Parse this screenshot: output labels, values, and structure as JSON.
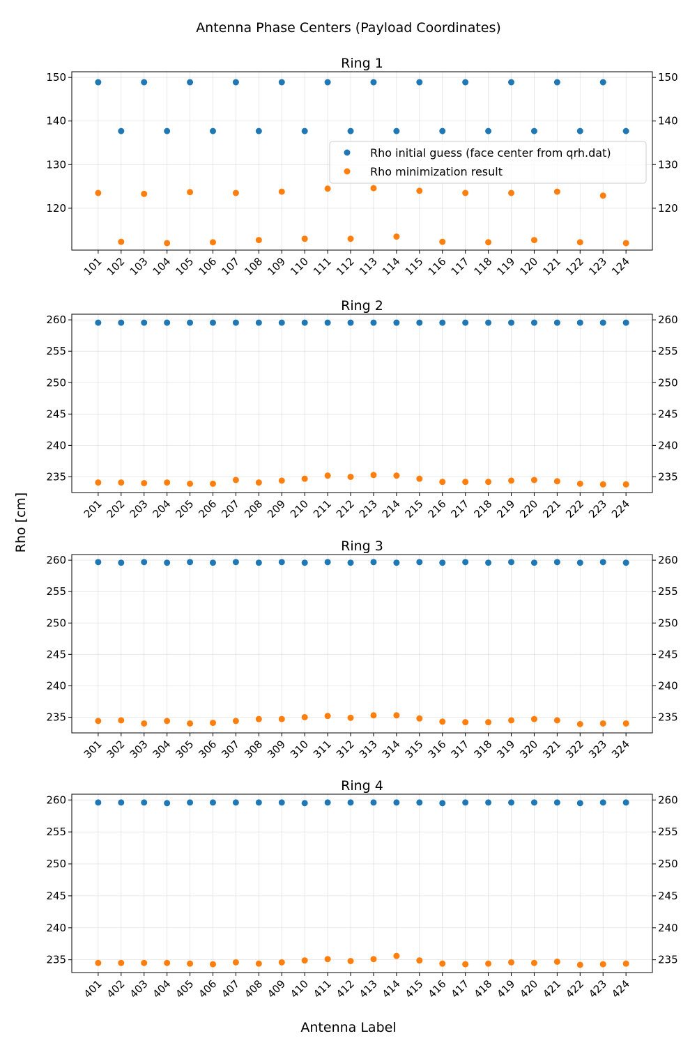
{
  "chart_data": {
    "type": "scatter",
    "title": "Antenna Phase Centers (Payload Coordinates)",
    "xlabel": "Antenna Label",
    "ylabel": "Rho [cm]",
    "legend": {
      "placement": "center-right of first subplot",
      "entries": [
        "Rho initial guess (face center from qrh.dat)",
        "Rho minimization result"
      ]
    },
    "colors": {
      "initial": "#1f77b4",
      "result": "#ff7f0e"
    },
    "grid": true,
    "subplots": [
      {
        "title": "Ring 1",
        "categories": [
          "101",
          "102",
          "103",
          "104",
          "105",
          "106",
          "107",
          "108",
          "109",
          "110",
          "111",
          "112",
          "113",
          "114",
          "115",
          "116",
          "117",
          "118",
          "119",
          "120",
          "121",
          "122",
          "123",
          "124"
        ],
        "ylim": [
          110.4,
          151.3
        ],
        "yticks": [
          120,
          130,
          140,
          150
        ],
        "series": [
          {
            "name": "Rho initial guess (face center from qrh.dat)",
            "values": [
              148.9,
              137.7,
              148.9,
              137.7,
              148.9,
              137.7,
              148.9,
              137.7,
              148.9,
              137.7,
              148.9,
              137.7,
              148.9,
              137.7,
              148.9,
              137.7,
              148.9,
              137.7,
              148.9,
              137.7,
              148.9,
              137.7,
              148.9,
              137.7
            ]
          },
          {
            "name": "Rho minimization result",
            "values": [
              123.5,
              112.3,
              123.3,
              112.0,
              123.7,
              112.2,
              123.5,
              112.7,
              123.8,
              113.0,
              124.5,
              113.0,
              124.6,
              113.5,
              124.0,
              112.3,
              123.5,
              112.2,
              123.5,
              112.7,
              123.8,
              112.2,
              122.9,
              112.0
            ]
          }
        ]
      },
      {
        "title": "Ring 2",
        "categories": [
          "201",
          "202",
          "203",
          "204",
          "205",
          "206",
          "207",
          "208",
          "209",
          "210",
          "211",
          "212",
          "213",
          "214",
          "215",
          "216",
          "217",
          "218",
          "219",
          "220",
          "221",
          "222",
          "223",
          "224"
        ],
        "ylim": [
          232.5,
          260.9
        ],
        "yticks": [
          235,
          240,
          245,
          250,
          255,
          260
        ],
        "series": [
          {
            "name": "Rho initial guess (face center from qrh.dat)",
            "values": [
              259.55,
              259.55,
              259.55,
              259.55,
              259.55,
              259.55,
              259.55,
              259.55,
              259.55,
              259.55,
              259.55,
              259.55,
              259.55,
              259.55,
              259.55,
              259.55,
              259.55,
              259.55,
              259.55,
              259.55,
              259.55,
              259.55,
              259.55,
              259.55
            ]
          },
          {
            "name": "Rho minimization result",
            "values": [
              234.1,
              234.1,
              234.0,
              234.1,
              233.9,
              233.9,
              234.5,
              234.1,
              234.4,
              234.7,
              235.2,
              235.0,
              235.3,
              235.2,
              234.7,
              234.2,
              234.2,
              234.2,
              234.4,
              234.5,
              234.3,
              233.9,
              233.8,
              233.8
            ]
          }
        ]
      },
      {
        "title": "Ring 3",
        "categories": [
          "301",
          "302",
          "303",
          "304",
          "305",
          "306",
          "307",
          "308",
          "309",
          "310",
          "311",
          "312",
          "313",
          "314",
          "315",
          "316",
          "317",
          "318",
          "319",
          "320",
          "321",
          "322",
          "323",
          "324"
        ],
        "ylim": [
          232.5,
          260.9
        ],
        "yticks": [
          235,
          240,
          245,
          250,
          255,
          260
        ],
        "series": [
          {
            "name": "Rho initial guess (face center from qrh.dat)",
            "values": [
              259.7,
              259.6,
              259.7,
              259.6,
              259.7,
              259.6,
              259.7,
              259.6,
              259.7,
              259.6,
              259.7,
              259.6,
              259.7,
              259.6,
              259.7,
              259.6,
              259.7,
              259.6,
              259.7,
              259.6,
              259.7,
              259.6,
              259.7,
              259.6
            ]
          },
          {
            "name": "Rho minimization result",
            "values": [
              234.4,
              234.5,
              234.0,
              234.4,
              234.0,
              234.1,
              234.4,
              234.7,
              234.7,
              235.0,
              235.2,
              234.9,
              235.3,
              235.3,
              234.8,
              234.3,
              234.2,
              234.2,
              234.5,
              234.7,
              234.5,
              233.9,
              234.0,
              234.0
            ]
          }
        ]
      },
      {
        "title": "Ring 4",
        "categories": [
          "401",
          "402",
          "403",
          "404",
          "405",
          "406",
          "407",
          "408",
          "409",
          "410",
          "411",
          "412",
          "413",
          "414",
          "415",
          "416",
          "417",
          "418",
          "419",
          "420",
          "421",
          "422",
          "423",
          "424"
        ],
        "ylim": [
          233.0,
          260.9
        ],
        "yticks": [
          235,
          240,
          245,
          250,
          255,
          260
        ],
        "series": [
          {
            "name": "Rho initial guess (face center from qrh.dat)",
            "values": [
              259.6,
              259.6,
              259.6,
              259.5,
              259.6,
              259.6,
              259.6,
              259.6,
              259.6,
              259.5,
              259.6,
              259.6,
              259.6,
              259.6,
              259.6,
              259.5,
              259.6,
              259.6,
              259.6,
              259.6,
              259.6,
              259.5,
              259.6,
              259.6
            ]
          },
          {
            "name": "Rho minimization result",
            "values": [
              234.5,
              234.5,
              234.5,
              234.5,
              234.4,
              234.3,
              234.6,
              234.4,
              234.6,
              234.9,
              235.1,
              234.8,
              235.1,
              235.6,
              234.9,
              234.4,
              234.3,
              234.4,
              234.6,
              234.5,
              234.7,
              234.2,
              234.3,
              234.4
            ]
          }
        ]
      }
    ]
  }
}
